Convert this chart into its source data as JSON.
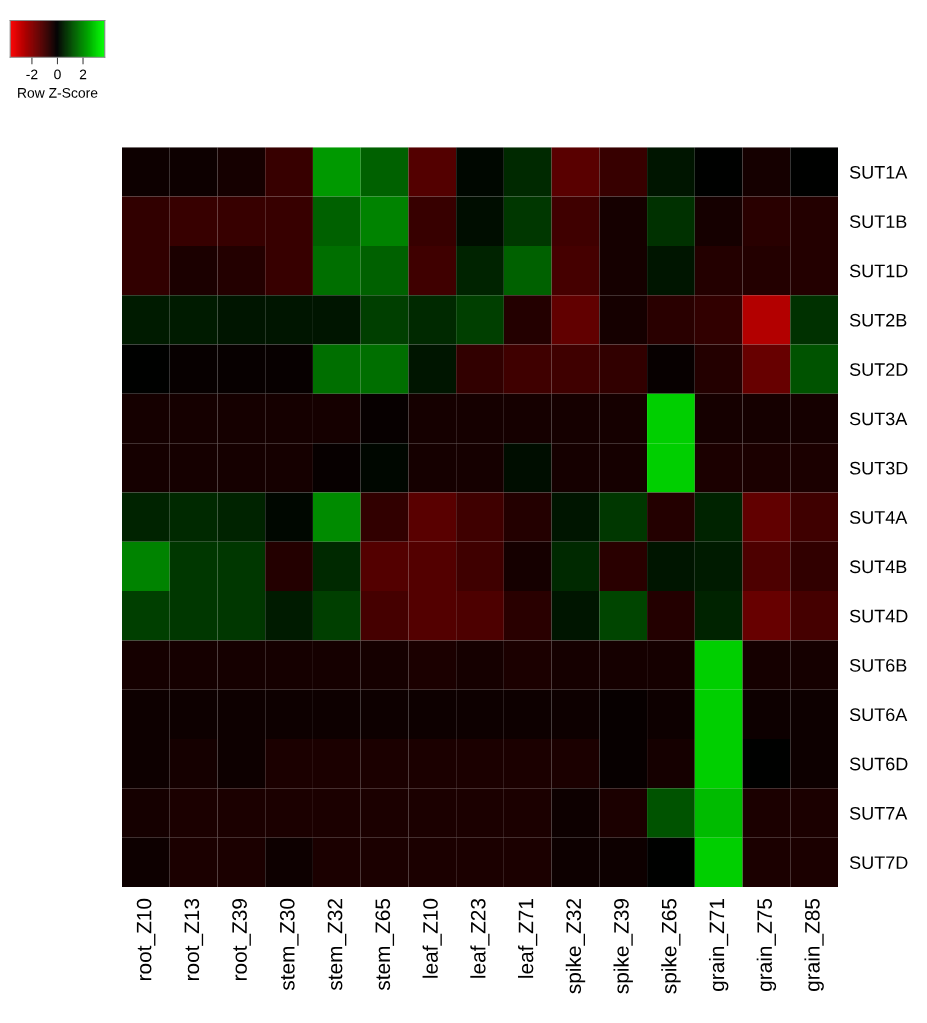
{
  "chart_data": {
    "type": "heatmap",
    "clabel": "Row Z-Score",
    "clim": [
      -3.7,
      3.7
    ],
    "cticks": [
      -2,
      0,
      2
    ],
    "categories": [
      "root_Z10",
      "root_Z13",
      "root_Z39",
      "stem_Z30",
      "stem_Z32",
      "stem_Z65",
      "leaf_Z10",
      "leaf_Z23",
      "leaf_Z71",
      "spike_Z32",
      "spike_Z39",
      "spike_Z65",
      "grain_Z71",
      "grain_Z75",
      "grain_Z85"
    ],
    "y_categories": [
      "SUT1A",
      "SUT1B",
      "SUT1D",
      "SUT2B",
      "SUT2D",
      "SUT3A",
      "SUT3D",
      "SUT4A",
      "SUT4B",
      "SUT4D",
      "SUT6B",
      "SUT6A",
      "SUT6D",
      "SUT7A",
      "SUT7D"
    ],
    "cells": [
      [
        -0.2,
        -0.2,
        -0.3,
        -0.8,
        2.2,
        1.4,
        -1.2,
        0.1,
        0.6,
        -1.3,
        -0.8,
        0.3,
        0.0,
        -0.3,
        0.0
      ],
      [
        -0.7,
        -0.8,
        -0.8,
        -0.8,
        1.4,
        1.9,
        -0.8,
        0.2,
        0.8,
        -0.9,
        -0.3,
        0.7,
        -0.3,
        -0.6,
        -0.5
      ],
      [
        -0.7,
        -0.4,
        -0.5,
        -0.8,
        1.6,
        1.4,
        -0.9,
        0.5,
        1.4,
        -1.0,
        -0.3,
        0.3,
        -0.5,
        -0.5,
        -0.5
      ],
      [
        0.4,
        0.4,
        0.3,
        0.3,
        0.3,
        0.9,
        0.6,
        0.9,
        -0.5,
        -1.4,
        -0.3,
        -0.6,
        -0.7,
        -2.6,
        0.7
      ],
      [
        0.0,
        -0.1,
        -0.1,
        -0.1,
        1.6,
        1.6,
        0.3,
        -0.7,
        -0.9,
        -0.9,
        -0.7,
        -0.1,
        -0.5,
        -1.5,
        1.2
      ],
      [
        -0.3,
        -0.3,
        -0.3,
        -0.3,
        -0.3,
        -0.1,
        -0.3,
        -0.3,
        -0.3,
        -0.3,
        -0.3,
        3.0,
        -0.3,
        -0.3,
        -0.3
      ],
      [
        -0.3,
        -0.3,
        -0.3,
        -0.3,
        -0.1,
        0.1,
        -0.3,
        -0.3,
        0.2,
        -0.3,
        -0.3,
        3.0,
        -0.4,
        -0.4,
        -0.4
      ],
      [
        0.5,
        0.6,
        0.5,
        0.1,
        2.0,
        -0.7,
        -1.3,
        -0.9,
        -0.5,
        0.3,
        0.8,
        -0.5,
        0.5,
        -1.4,
        -0.9
      ],
      [
        1.9,
        0.8,
        0.8,
        -0.5,
        0.6,
        -1.2,
        -1.2,
        -0.9,
        -0.3,
        0.6,
        -0.6,
        0.3,
        0.4,
        -1.1,
        -0.7
      ],
      [
        0.9,
        0.8,
        0.8,
        0.4,
        0.9,
        -1.0,
        -1.2,
        -1.1,
        -0.6,
        0.3,
        1.0,
        -0.5,
        0.5,
        -1.5,
        -1.0
      ],
      [
        -0.3,
        -0.3,
        -0.3,
        -0.3,
        -0.3,
        -0.3,
        -0.4,
        -0.3,
        -0.4,
        -0.3,
        -0.3,
        -0.3,
        3.0,
        -0.3,
        -0.3
      ],
      [
        -0.2,
        -0.2,
        -0.2,
        -0.2,
        -0.2,
        -0.2,
        -0.2,
        -0.2,
        -0.2,
        -0.2,
        -0.1,
        -0.2,
        3.0,
        -0.2,
        -0.2
      ],
      [
        -0.2,
        -0.3,
        -0.2,
        -0.4,
        -0.4,
        -0.4,
        -0.4,
        -0.4,
        -0.4,
        -0.4,
        -0.1,
        -0.3,
        3.0,
        0.0,
        -0.2
      ],
      [
        -0.3,
        -0.4,
        -0.4,
        -0.4,
        -0.4,
        -0.4,
        -0.4,
        -0.4,
        -0.4,
        -0.2,
        -0.4,
        1.2,
        2.7,
        -0.4,
        -0.4
      ],
      [
        -0.2,
        -0.4,
        -0.4,
        -0.2,
        -0.4,
        -0.4,
        -0.4,
        -0.4,
        -0.4,
        -0.2,
        -0.2,
        0.0,
        3.0,
        -0.4,
        -0.4
      ]
    ]
  }
}
